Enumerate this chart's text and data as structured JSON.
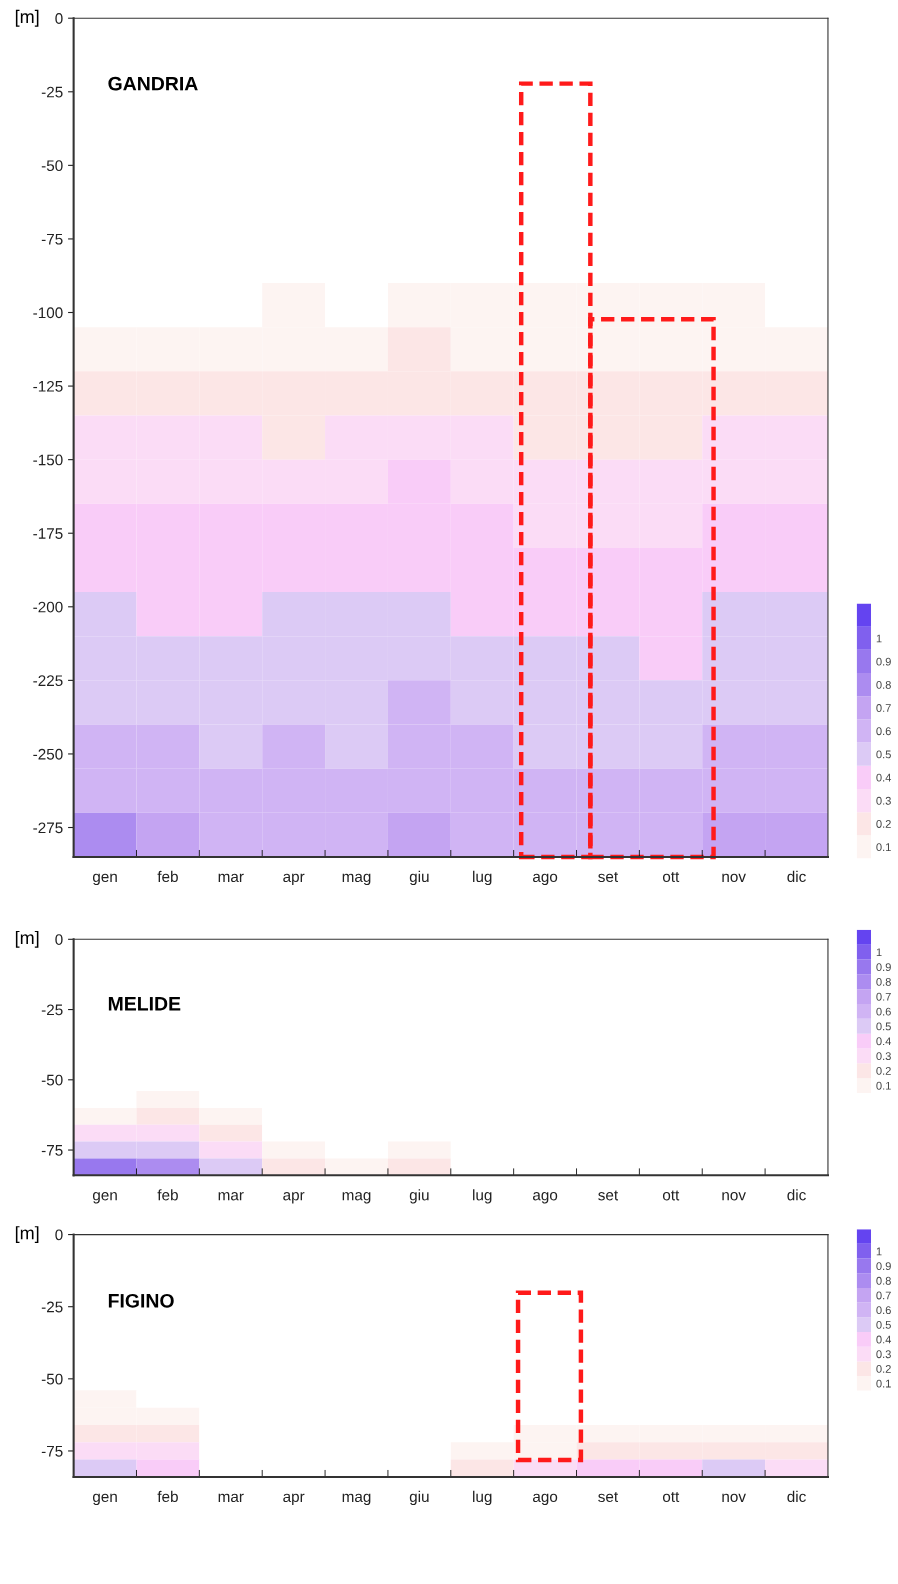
{
  "chart_data": [
    {
      "type": "heatmap",
      "title": "GANDRIA",
      "ylabel": "[m]",
      "categories": [
        "gen",
        "feb",
        "mar",
        "apr",
        "mag",
        "giu",
        "lug",
        "ago",
        "set",
        "ott",
        "nov",
        "dic"
      ],
      "cells": [
        [
          0,
          0,
          0,
          0,
          0,
          0,
          0,
          0,
          0,
          0,
          0,
          0
        ],
        [
          0,
          0,
          0,
          0,
          0,
          0,
          0,
          0,
          0,
          0,
          0,
          0
        ],
        [
          0,
          0,
          0,
          0,
          0,
          0,
          0,
          0,
          0,
          0,
          0,
          0
        ],
        [
          0,
          0,
          0,
          0,
          0,
          0,
          0,
          0,
          0,
          0,
          0,
          0
        ],
        [
          0,
          0,
          0,
          0,
          0,
          0,
          0,
          0,
          0,
          0,
          0,
          0
        ],
        [
          0,
          0,
          0,
          0,
          0,
          0,
          0,
          0,
          0,
          0,
          0,
          0
        ],
        [
          0,
          0,
          0,
          0.1,
          0,
          0.1,
          0.1,
          0.1,
          0.1,
          0.1,
          0.1,
          0
        ],
        [
          0.1,
          0.1,
          0.1,
          0.1,
          0.1,
          0.2,
          0.1,
          0.1,
          0.1,
          0.1,
          0.1,
          0.1
        ],
        [
          0.2,
          0.2,
          0.2,
          0.2,
          0.2,
          0.2,
          0.2,
          0.2,
          0.2,
          0.2,
          0.2,
          0.2
        ],
        [
          0.3,
          0.3,
          0.3,
          0.2,
          0.3,
          0.3,
          0.3,
          0.2,
          0.2,
          0.2,
          0.3,
          0.3
        ],
        [
          0.3,
          0.3,
          0.3,
          0.3,
          0.3,
          0.4,
          0.3,
          0.3,
          0.3,
          0.3,
          0.3,
          0.3
        ],
        [
          0.4,
          0.4,
          0.4,
          0.4,
          0.4,
          0.4,
          0.4,
          0.3,
          0.3,
          0.3,
          0.4,
          0.4
        ],
        [
          0.4,
          0.4,
          0.4,
          0.4,
          0.4,
          0.4,
          0.4,
          0.4,
          0.4,
          0.4,
          0.4,
          0.4
        ],
        [
          0.5,
          0.4,
          0.4,
          0.5,
          0.5,
          0.5,
          0.4,
          0.4,
          0.4,
          0.4,
          0.5,
          0.5
        ],
        [
          0.5,
          0.5,
          0.5,
          0.5,
          0.5,
          0.5,
          0.5,
          0.5,
          0.5,
          0.4,
          0.5,
          0.5
        ],
        [
          0.5,
          0.5,
          0.5,
          0.5,
          0.5,
          0.6,
          0.5,
          0.5,
          0.5,
          0.5,
          0.5,
          0.5
        ],
        [
          0.6,
          0.6,
          0.5,
          0.6,
          0.5,
          0.6,
          0.6,
          0.5,
          0.5,
          0.5,
          0.6,
          0.6
        ],
        [
          0.6,
          0.6,
          0.6,
          0.6,
          0.6,
          0.6,
          0.6,
          0.6,
          0.6,
          0.6,
          0.6,
          0.6
        ],
        [
          0.8,
          0.7,
          0.6,
          0.6,
          0.6,
          0.7,
          0.6,
          0.6,
          0.6,
          0.6,
          0.7,
          0.7
        ]
      ],
      "ylim": [
        -285,
        0
      ],
      "yticks": [
        0,
        -25,
        -50,
        -75,
        -100,
        -125,
        -150,
        -175,
        -200,
        -225,
        -250,
        -275
      ],
      "clim": [
        0.05,
        1.15
      ],
      "cticks": [
        0.1,
        0.2,
        0.3,
        0.4,
        0.5,
        0.6,
        0.7,
        0.8,
        0.9,
        1
      ],
      "colors": [
        "#fdf4f2",
        "#fce6e6",
        "#fbdcf6",
        "#f9ccf8",
        "#dccaf5",
        "#d0b4f4",
        "#c4a4f2",
        "#ac8cf0",
        "#9878ee",
        "#8060ee",
        "#6444f0"
      ]
    },
    {
      "type": "heatmap",
      "title": "MELIDE",
      "ylabel": "[m]",
      "categories": [
        "gen",
        "feb",
        "mar",
        "apr",
        "mag",
        "giu",
        "lug",
        "ago",
        "set",
        "ott",
        "nov",
        "dic"
      ],
      "cells": [
        [
          0,
          0,
          0,
          0,
          0,
          0,
          0,
          0,
          0,
          0,
          0,
          0
        ],
        [
          0,
          0,
          0,
          0,
          0,
          0,
          0,
          0,
          0,
          0,
          0,
          0
        ],
        [
          0,
          0,
          0,
          0,
          0,
          0,
          0,
          0,
          0,
          0,
          0,
          0
        ],
        [
          0,
          0,
          0,
          0,
          0,
          0,
          0,
          0,
          0,
          0,
          0,
          0
        ],
        [
          0,
          0,
          0,
          0,
          0,
          0,
          0,
          0,
          0,
          0,
          0,
          0
        ],
        [
          0,
          0,
          0,
          0,
          0,
          0,
          0,
          0,
          0,
          0,
          0,
          0
        ],
        [
          0,
          0,
          0,
          0,
          0,
          0,
          0,
          0,
          0,
          0,
          0,
          0
        ],
        [
          0,
          0,
          0,
          0,
          0,
          0,
          0,
          0,
          0,
          0,
          0,
          0
        ],
        [
          0,
          0,
          0,
          0,
          0,
          0,
          0,
          0,
          0,
          0,
          0,
          0
        ],
        [
          0,
          0.1,
          0,
          0,
          0,
          0,
          0,
          0,
          0,
          0,
          0,
          0
        ],
        [
          0.1,
          0.2,
          0.1,
          0,
          0,
          0,
          0,
          0,
          0,
          0,
          0,
          0
        ],
        [
          0.3,
          0.3,
          0.2,
          0,
          0,
          0,
          0,
          0,
          0,
          0,
          0,
          0
        ],
        [
          0.5,
          0.5,
          0.3,
          0.1,
          0,
          0.1,
          0,
          0,
          0,
          0,
          0,
          0
        ],
        [
          0.9,
          0.8,
          0.5,
          0.2,
          0.1,
          0.2,
          0,
          0,
          0,
          0,
          0,
          0
        ]
      ],
      "ylim": [
        -84,
        0
      ],
      "yticks": [
        0,
        -25,
        -50,
        -75
      ],
      "clim": [
        0.05,
        1.15
      ],
      "cticks": [
        0.1,
        0.2,
        0.3,
        0.4,
        0.5,
        0.6,
        0.7,
        0.8,
        0.9,
        1
      ],
      "colors": [
        "#fdf4f2",
        "#fce6e6",
        "#fbdcf6",
        "#f9ccf8",
        "#dccaf5",
        "#d0b4f4",
        "#c4a4f2",
        "#ac8cf0",
        "#9878ee",
        "#8060ee",
        "#6444f0"
      ]
    },
    {
      "type": "heatmap",
      "title": "FIGINO",
      "ylabel": "[m]",
      "categories": [
        "gen",
        "feb",
        "mar",
        "apr",
        "mag",
        "giu",
        "lug",
        "ago",
        "set",
        "ott",
        "nov",
        "dic"
      ],
      "cells": [
        [
          0,
          0,
          0,
          0,
          0,
          0,
          0,
          0,
          0,
          0,
          0,
          0
        ],
        [
          0,
          0,
          0,
          0,
          0,
          0,
          0,
          0,
          0,
          0,
          0,
          0
        ],
        [
          0,
          0,
          0,
          0,
          0,
          0,
          0,
          0,
          0,
          0,
          0,
          0
        ],
        [
          0,
          0,
          0,
          0,
          0,
          0,
          0,
          0,
          0,
          0,
          0,
          0
        ],
        [
          0,
          0,
          0,
          0,
          0,
          0,
          0,
          0,
          0,
          0,
          0,
          0
        ],
        [
          0,
          0,
          0,
          0,
          0,
          0,
          0,
          0,
          0,
          0,
          0,
          0
        ],
        [
          0,
          0,
          0,
          0,
          0,
          0,
          0,
          0,
          0,
          0,
          0,
          0
        ],
        [
          0,
          0,
          0,
          0,
          0,
          0,
          0,
          0,
          0,
          0,
          0,
          0
        ],
        [
          0,
          0,
          0,
          0,
          0,
          0,
          0,
          0,
          0,
          0,
          0,
          0
        ],
        [
          0.1,
          0,
          0,
          0,
          0,
          0,
          0,
          0,
          0,
          0,
          0,
          0
        ],
        [
          0.1,
          0.1,
          0,
          0,
          0,
          0,
          0,
          0,
          0,
          0,
          0,
          0
        ],
        [
          0.2,
          0.2,
          0,
          0,
          0,
          0,
          0,
          0.1,
          0.1,
          0.1,
          0.1,
          0.1
        ],
        [
          0.3,
          0.3,
          0,
          0,
          0,
          0,
          0.1,
          0.1,
          0.2,
          0.2,
          0.2,
          0.2
        ],
        [
          0.5,
          0.4,
          0,
          0,
          0,
          0,
          0.2,
          0.3,
          0.4,
          0.4,
          0.5,
          0.3
        ]
      ],
      "ylim": [
        -84,
        0
      ],
      "yticks": [
        0,
        -25,
        -50,
        -75
      ],
      "clim": [
        0.05,
        1.15
      ],
      "cticks": [
        0.1,
        0.2,
        0.3,
        0.4,
        0.5,
        0.6,
        0.7,
        0.8,
        0.9,
        1
      ],
      "colors": [
        "#fdf4f2",
        "#fce6e6",
        "#fbdcf6",
        "#f9ccf8",
        "#dccaf5",
        "#d0b4f4",
        "#c4a4f2",
        "#ac8cf0",
        "#9878ee",
        "#8060ee",
        "#6444f0"
      ]
    }
  ]
}
